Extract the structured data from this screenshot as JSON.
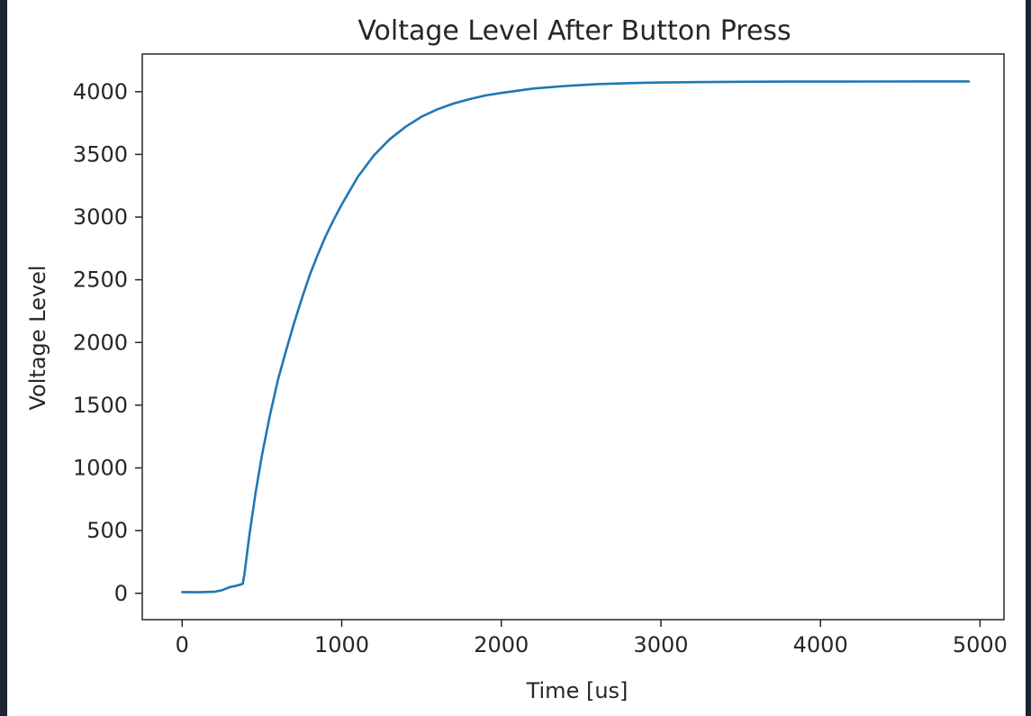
{
  "chart_data": {
    "type": "line",
    "title": "Voltage Level After Button Press",
    "xlabel": "Time [us]",
    "ylabel": "Voltage Level",
    "xlim": [
      -250,
      5150
    ],
    "ylim": [
      -210,
      4300
    ],
    "xticks": [
      0,
      1000,
      2000,
      3000,
      4000,
      5000
    ],
    "yticks": [
      0,
      500,
      1000,
      1500,
      2000,
      2500,
      3000,
      3500,
      4000
    ],
    "grid": false,
    "series": [
      {
        "color": "#1f77b4",
        "x": [
          0,
          100,
          200,
          250,
          300,
          340,
          380,
          390,
          420,
          460,
          500,
          550,
          600,
          650,
          700,
          750,
          800,
          850,
          900,
          950,
          1000,
          1100,
          1200,
          1300,
          1400,
          1500,
          1600,
          1700,
          1800,
          1900,
          2000,
          2200,
          2400,
          2600,
          2800,
          3000,
          3200,
          3500,
          3800,
          4100,
          4400,
          4700,
          4930
        ],
        "y": [
          10,
          8,
          12,
          25,
          50,
          60,
          75,
          150,
          450,
          800,
          1100,
          1420,
          1700,
          1930,
          2150,
          2350,
          2540,
          2700,
          2850,
          2980,
          3100,
          3320,
          3490,
          3620,
          3720,
          3800,
          3860,
          3905,
          3940,
          3970,
          3990,
          4025,
          4045,
          4060,
          4068,
          4073,
          4076,
          4079,
          4080,
          4080,
          4081,
          4082,
          4082
        ]
      }
    ]
  }
}
